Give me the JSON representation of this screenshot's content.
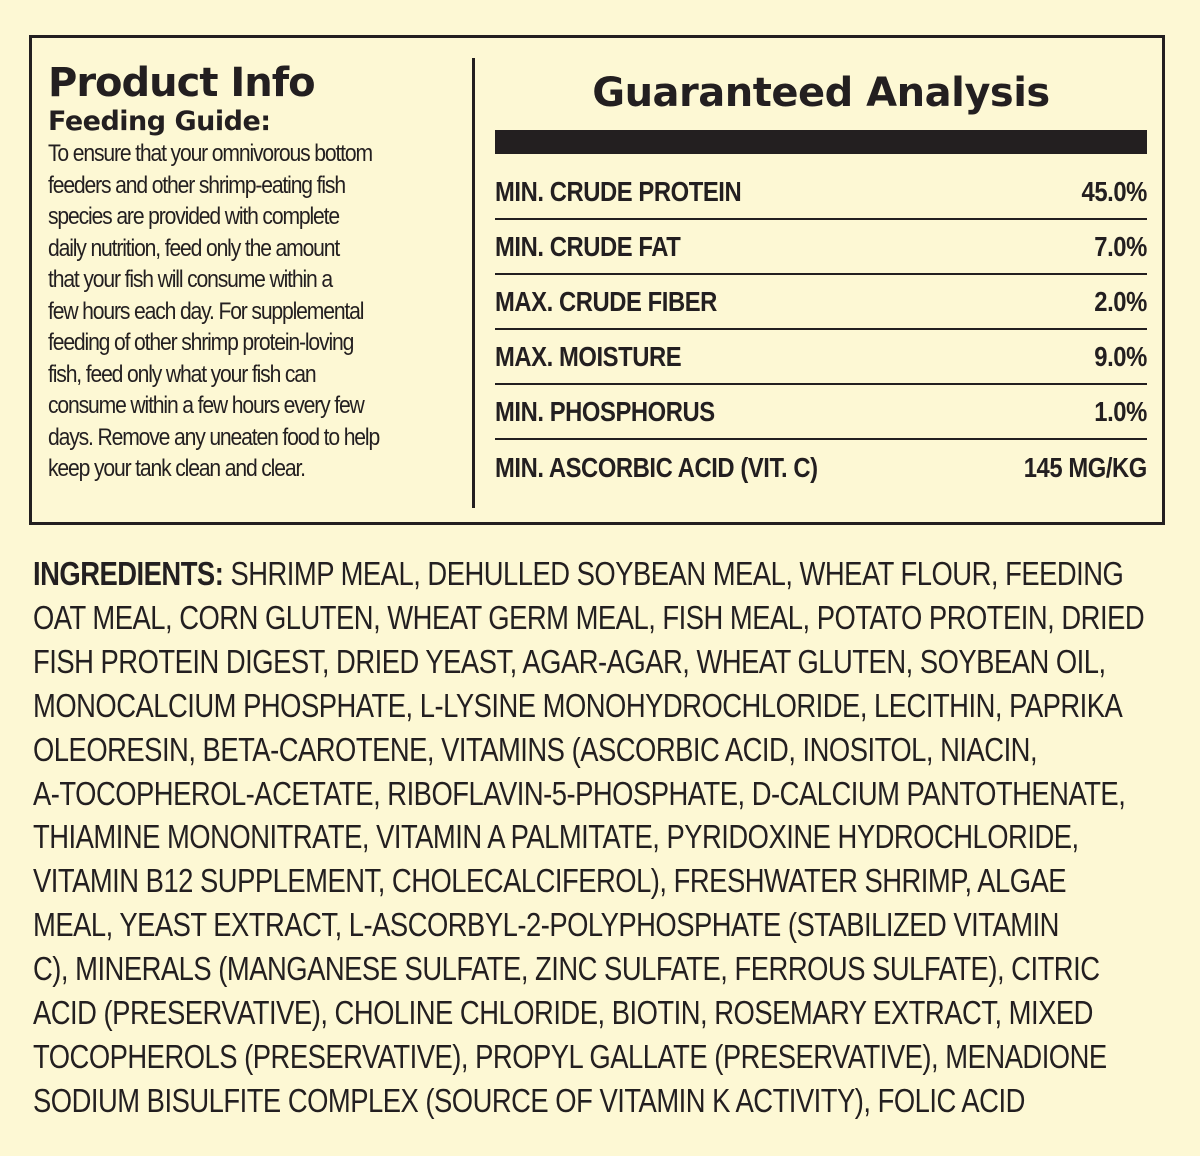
{
  "product_info": {
    "title": "Product Info",
    "feeding_title": "Feeding Guide:",
    "feeding_lines": [
      "To ensure that your omnivorous bottom",
      "feeders and other shrimp-eating fish",
      "species are provided with complete",
      "daily nutrition, feed only the amount",
      "that your fish will consume within a",
      "few hours each day. For supplemental",
      "feeding of other shrimp protein-loving",
      "fish, feed only what your fish can",
      "consume within a few hours every few",
      "days. Remove any uneaten food to help",
      "keep your tank clean and clear."
    ]
  },
  "guaranteed_analysis": {
    "title": "Guaranteed Analysis",
    "rows": [
      {
        "label": "MIN. CRUDE PROTEIN",
        "value": "45.0%"
      },
      {
        "label": "MIN. CRUDE FAT",
        "value": "7.0%"
      },
      {
        "label": "MAX. CRUDE FIBER",
        "value": "2.0%"
      },
      {
        "label": "MAX. MOISTURE",
        "value": "9.0%"
      },
      {
        "label": "MIN. PHOSPHORUS",
        "value": "1.0%"
      },
      {
        "label": "MIN. ASCORBIC ACID (VIT. C)",
        "value": "145 MG/KG"
      }
    ]
  },
  "ingredients": {
    "label": "INGREDIENTS:",
    "lines": [
      " SHRIMP MEAL, DEHULLED SOYBEAN MEAL, WHEAT FLOUR, FEEDING",
      "OAT MEAL, CORN GLUTEN, WHEAT GERM MEAL, FISH MEAL, POTATO PROTEIN, DRIED",
      "FISH PROTEIN DIGEST, DRIED YEAST, AGAR-AGAR, WHEAT GLUTEN, SOYBEAN OIL,",
      "MONOCALCIUM PHOSPHATE, L-LYSINE MONOHYDROCHLORIDE, LECITHIN, PAPRIKA",
      "OLEORESIN, BETA-CAROTENE, VITAMINS (ASCORBIC ACID, INOSITOL, NIACIN,",
      "A-TOCOPHEROL-ACETATE, RIBOFLAVIN-5-PHOSPHATE, D-CALCIUM PANTOTHENATE,",
      "THIAMINE MONONITRATE, VITAMIN A PALMITATE, PYRIDOXINE HYDROCHLORIDE,",
      "VITAMIN B12 SUPPLEMENT, CHOLECALCIFEROL), FRESHWATER SHRIMP, ALGAE",
      "MEAL, YEAST EXTRACT, L-ASCORBYL-2-POLYPHOSPHATE (STABILIZED VITAMIN",
      "C), MINERALS (MANGANESE SULFATE, ZINC SULFATE, FERROUS SULFATE), CITRIC",
      "ACID (PRESERVATIVE), CHOLINE CHLORIDE, BIOTIN, ROSEMARY EXTRACT, MIXED",
      "TOCOPHEROLS (PRESERVATIVE), PROPYL GALLATE (PRESERVATIVE), MENADIONE",
      "SODIUM BISULFITE COMPLEX (SOURCE OF VITAMIN K ACTIVITY), FOLIC ACID"
    ]
  },
  "colors": {
    "background": "#fdf8d4",
    "ink": "#231f20"
  }
}
